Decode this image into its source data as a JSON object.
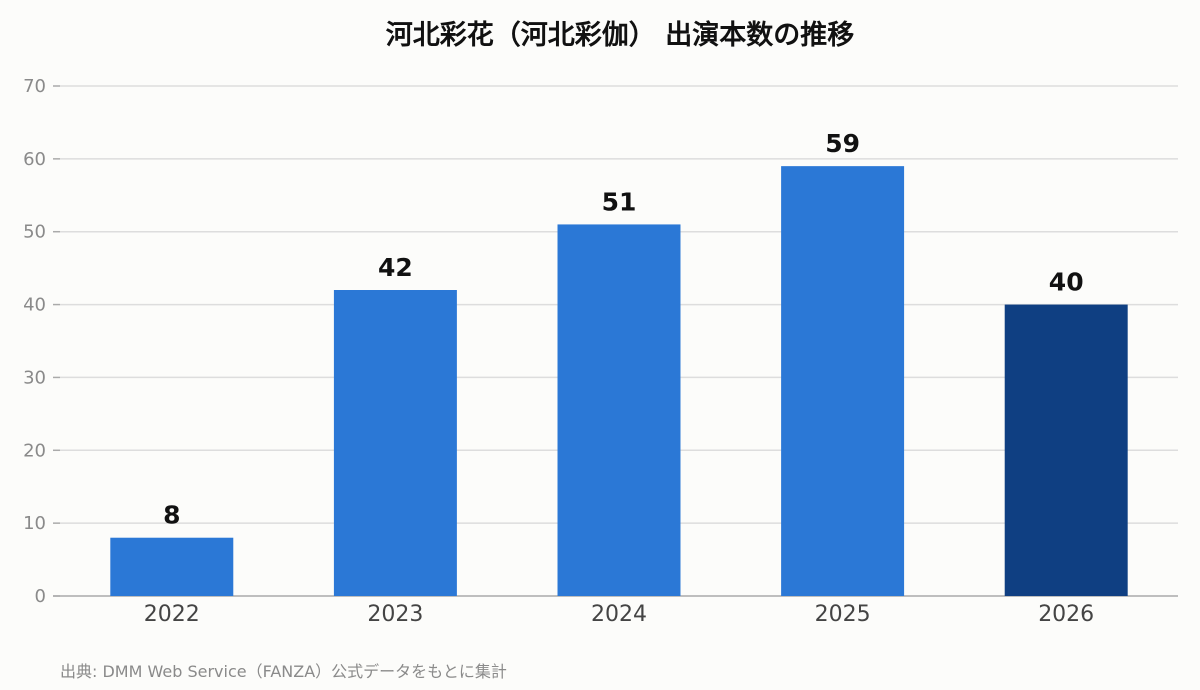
{
  "chart_data": {
    "type": "bar",
    "title": "河北彩花（河北彩伽） 出演本数の推移",
    "categories": [
      "2022",
      "2023",
      "2024",
      "2025",
      "2026"
    ],
    "values": [
      8,
      42,
      51,
      59,
      40
    ],
    "ylim": [
      0,
      70
    ],
    "yticks": [
      0,
      10,
      20,
      30,
      40,
      50,
      60,
      70
    ],
    "xlabel": "",
    "ylabel": "",
    "grid": true,
    "legend": "none",
    "colors": {
      "bar": "#2b78d6",
      "bar_highlight": "#0f3f82",
      "grid": "#dddddd",
      "axis": "#aaaaaa"
    },
    "highlight_categories": [
      "2026"
    ]
  },
  "source_note": "出典: DMM Web Service（FANZA）公式データをもとに集計"
}
